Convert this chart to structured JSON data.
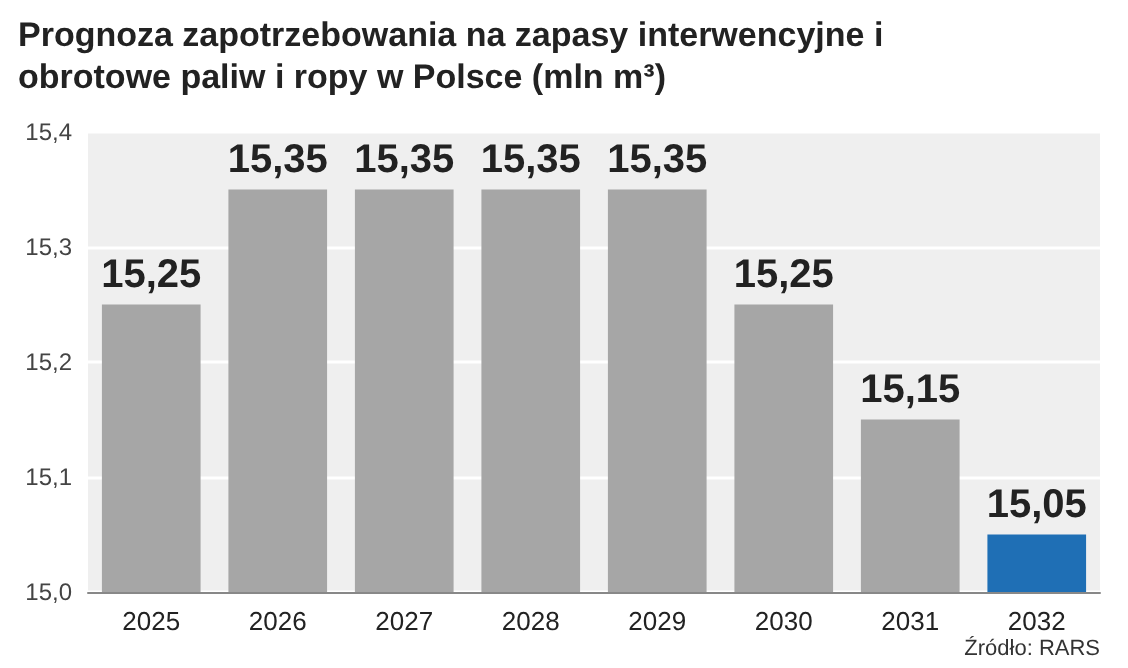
{
  "chart_data": {
    "type": "bar",
    "title": "Prognoza zapotrzebowania na zapasy interwencyjne i obrotowe paliw i ropy w Polsce (mln m³)",
    "categories": [
      "2025",
      "2026",
      "2027",
      "2028",
      "2029",
      "2030",
      "2031",
      "2032"
    ],
    "values": [
      15.25,
      15.35,
      15.35,
      15.35,
      15.35,
      15.25,
      15.15,
      15.05
    ],
    "colors": [
      "#a6a6a6",
      "#a6a6a6",
      "#a6a6a6",
      "#a6a6a6",
      "#a6a6a6",
      "#a6a6a6",
      "#a6a6a6",
      "#1f6fb5"
    ],
    "value_labels": [
      "15,25",
      "15,35",
      "15,35",
      "15,35",
      "15,35",
      "15,25",
      "15,15",
      "15,05"
    ],
    "ylim": [
      15.0,
      15.4
    ],
    "yticks": [
      {
        "value": 15.0,
        "label": "15,0"
      },
      {
        "value": 15.1,
        "label": "15,1"
      },
      {
        "value": 15.2,
        "label": "15,2"
      },
      {
        "value": 15.3,
        "label": "15,3"
      },
      {
        "value": 15.4,
        "label": "15,4"
      }
    ],
    "grid": "y",
    "annotations": [
      "Źródło: RARS"
    ]
  }
}
